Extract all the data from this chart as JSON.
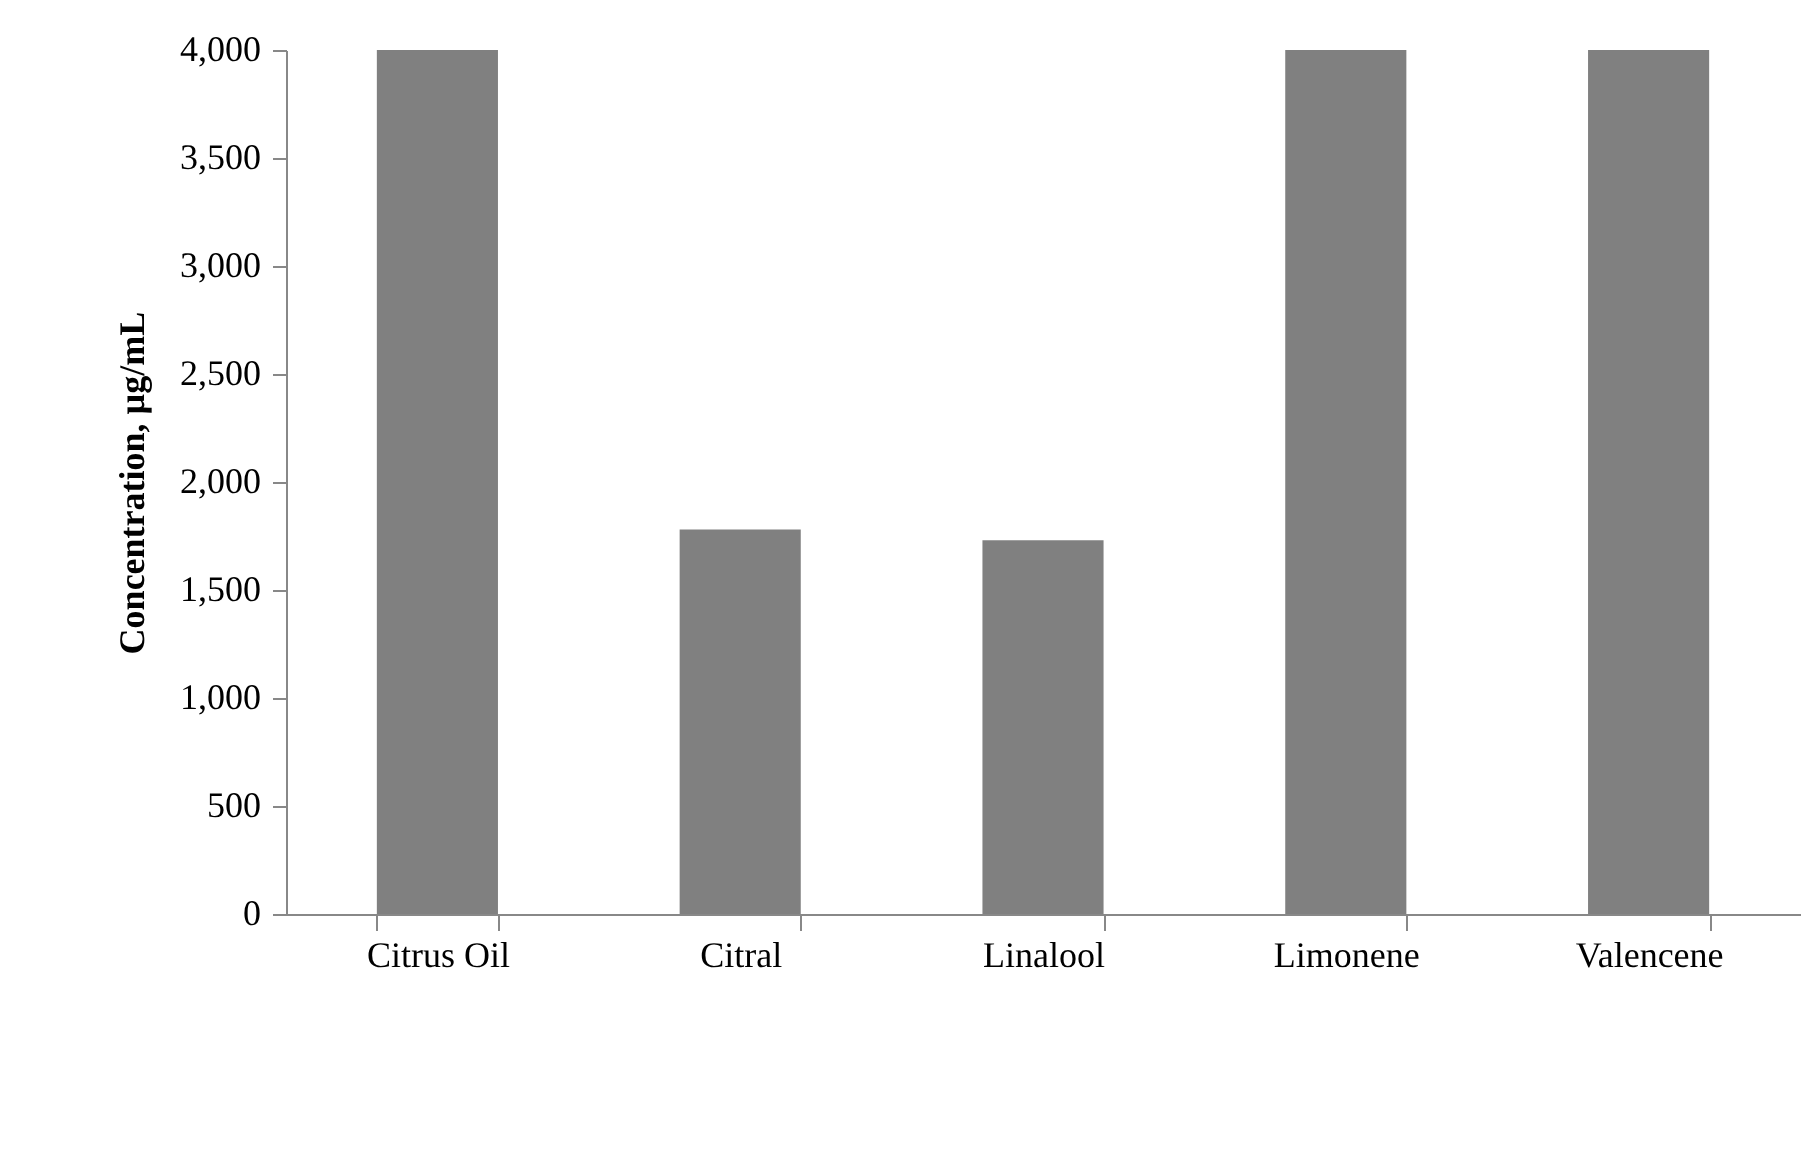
{
  "chart_data": {
    "type": "bar",
    "ylabel": "Concentration, µg/mL",
    "categories": [
      "Citrus Oil",
      "Citral",
      "Linalool",
      "Limonene",
      "Valencene"
    ],
    "values": [
      4000,
      1780,
      1730,
      4000,
      4000
    ],
    "color": "#808080",
    "ylim": [
      0,
      4000
    ],
    "yticks": [
      0,
      500,
      {
        "value": 1000,
        "label": "1,000"
      },
      {
        "value": 1500,
        "label": "1,500"
      },
      {
        "value": 2000,
        "label": "2,000"
      },
      {
        "value": 2500,
        "label": "2,500"
      },
      {
        "value": 3000,
        "label": "3,000"
      },
      {
        "value": 3500,
        "label": "3,500"
      },
      {
        "value": 4000,
        "label": "4,000"
      }
    ],
    "grid": false
  }
}
